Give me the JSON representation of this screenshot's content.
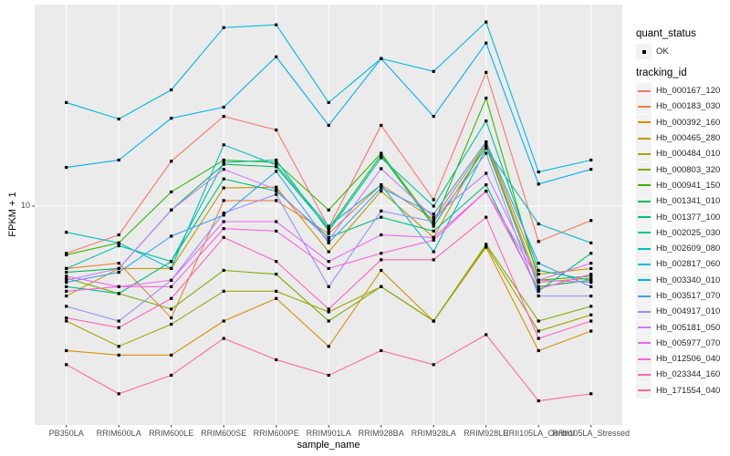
{
  "chart_data": {
    "type": "line",
    "xlabel": "sample_name",
    "ylabel": "FPKM + 1",
    "y_scale": "log10",
    "y_tick_labels": [
      "10"
    ],
    "grid": "major-white-on-gray",
    "legend_position": "right",
    "panel_bg": "#EBEBEB",
    "grid_color": "#FFFFFF",
    "point_color": "#000000",
    "marker": "small-black-square",
    "quant_status_legend": {
      "title": "quant_status",
      "ok_label": "OK"
    },
    "tracking_legend_title": "tracking_id",
    "categories": [
      "PB350LA",
      "RRIM600LA",
      "RRIM600LE",
      "RRIM600SE",
      "RRIM600PE",
      "RRIM901LA",
      "RRIM928BA",
      "RRIM928LA",
      "RRIM928LE",
      "RRII105LA_Control",
      "RRII105LA_Stressed"
    ],
    "series": [
      {
        "tracking_id": "Hb_000167_120",
        "color": "#F8766D",
        "values": [
          6.1,
          7.4,
          16.0,
          25.6,
          22.2,
          8.0,
          23.3,
          10.7,
          40.6,
          6.9,
          8.6
        ]
      },
      {
        "tracking_id": "Hb_000183_030",
        "color": "#EA8331",
        "values": [
          5.2,
          5.5,
          3.1,
          10.6,
          10.6,
          7.5,
          12.5,
          8.7,
          19.2,
          4.5,
          4.7
        ]
      },
      {
        "tracking_id": "Hb_000392_160",
        "color": "#D89000",
        "values": [
          2.2,
          2.1,
          2.1,
          3.0,
          3.8,
          2.3,
          5.1,
          3.0,
          6.5,
          2.2,
          2.7
        ]
      },
      {
        "tracking_id": "Hb_000465_280",
        "color": "#C09B00",
        "values": [
          3.9,
          5.2,
          5.2,
          12.1,
          12.2,
          6.2,
          11.7,
          7.2,
          19.6,
          4.9,
          5.2
        ]
      },
      {
        "tracking_id": "Hb_000484_010",
        "color": "#A3A500",
        "values": [
          3.0,
          2.3,
          2.9,
          4.1,
          4.1,
          3.3,
          4.3,
          3.0,
          6.6,
          2.7,
          3.2
        ]
      },
      {
        "tracking_id": "Hb_000803_320",
        "color": "#7CAE00",
        "values": [
          4.7,
          4.0,
          3.4,
          5.1,
          4.9,
          3.0,
          4.3,
          3.0,
          6.7,
          3.0,
          3.5
        ]
      },
      {
        "tracking_id": "Hb_000941_150",
        "color": "#39B600",
        "values": [
          6.0,
          6.8,
          11.6,
          16.2,
          15.8,
          9.6,
          17.4,
          8.3,
          31.0,
          4.6,
          4.8
        ]
      },
      {
        "tracking_id": "Hb_001341_010",
        "color": "#00BB4E",
        "values": [
          5.0,
          5.2,
          9.6,
          15.5,
          15.1,
          7.9,
          17.1,
          8.1,
          18.7,
          4.3,
          4.6
        ]
      },
      {
        "tracking_id": "Hb_001377_100",
        "color": "#00BF7D",
        "values": [
          4.3,
          4.0,
          5.6,
          13.3,
          11.7,
          7.2,
          8.9,
          7.7,
          12.5,
          4.1,
          6.1
        ]
      },
      {
        "tracking_id": "Hb_002025_030",
        "color": "#00C1A3",
        "values": [
          5.2,
          6.6,
          5.6,
          15.8,
          16.2,
          7.7,
          16.6,
          10.0,
          24.4,
          5.1,
          4.6
        ]
      },
      {
        "tracking_id": "Hb_002609_080",
        "color": "#00BFC4",
        "values": [
          7.6,
          6.8,
          5.2,
          19.0,
          15.4,
          8.1,
          12.5,
          6.2,
          18.3,
          8.3,
          6.8
        ]
      },
      {
        "tracking_id": "Hb_002817_060",
        "color": "#00BAE0",
        "values": [
          29.6,
          24.9,
          33.8,
          64.9,
          66.8,
          29.6,
          46.9,
          41.0,
          68.8,
          14.3,
          16.2
        ]
      },
      {
        "tracking_id": "Hb_003340_010",
        "color": "#00B0F6",
        "values": [
          15.0,
          16.2,
          25.1,
          28.2,
          47.8,
          23.3,
          46.9,
          25.6,
          55.2,
          12.6,
          14.7
        ]
      },
      {
        "tracking_id": "Hb_003517_070",
        "color": "#35A2FF",
        "values": [
          4.5,
          5.0,
          7.3,
          9.1,
          14.4,
          6.8,
          12.1,
          9.2,
          19.6,
          5.5,
          4.3
        ]
      },
      {
        "tracking_id": "Hb_004917_010",
        "color": "#9590FF",
        "values": [
          3.5,
          3.0,
          4.6,
          9.3,
          11.3,
          4.3,
          9.5,
          8.5,
          17.4,
          3.9,
          3.9
        ]
      },
      {
        "tracking_id": "Hb_005181_050",
        "color": "#C77CFF",
        "values": [
          4.6,
          5.2,
          9.6,
          14.7,
          11.9,
          7.0,
          14.8,
          8.9,
          14.1,
          4.6,
          4.5
        ]
      },
      {
        "tracking_id": "Hb_005977_070",
        "color": "#E76BF3",
        "values": [
          4.8,
          4.3,
          4.6,
          8.5,
          8.5,
          5.6,
          7.4,
          7.2,
          11.7,
          4.6,
          5.5
        ]
      },
      {
        "tracking_id": "Hb_012506_040",
        "color": "#FA62DB",
        "values": [
          4.1,
          4.3,
          4.3,
          7.9,
          7.7,
          5.2,
          6.1,
          7.0,
          11.7,
          4.2,
          4.9
        ]
      },
      {
        "tracking_id": "Hb_023344_160",
        "color": "#FF62BC",
        "values": [
          3.1,
          2.8,
          3.8,
          7.2,
          5.6,
          3.4,
          5.7,
          5.7,
          8.9,
          2.5,
          3.0
        ]
      },
      {
        "tracking_id": "Hb_171554_040",
        "color": "#FF6A98",
        "values": [
          1.9,
          1.4,
          1.7,
          2.5,
          2.0,
          1.7,
          2.2,
          1.9,
          2.6,
          1.3,
          1.4
        ]
      }
    ]
  }
}
